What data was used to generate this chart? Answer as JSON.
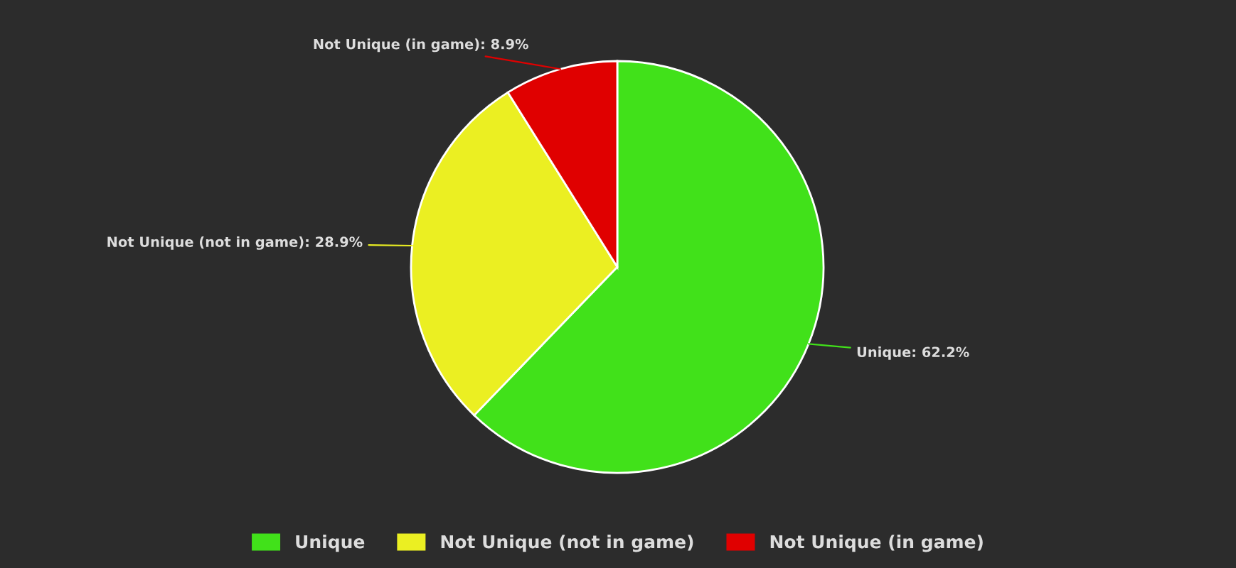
{
  "chart_data": {
    "type": "pie",
    "categories": [
      "Unique",
      "Not Unique (not in game)",
      "Not Unique (in game)"
    ],
    "values": [
      62.2,
      28.9,
      8.9
    ],
    "colors": [
      "#41e11a",
      "#ebef22",
      "#e00000"
    ],
    "value_labels": [
      "Unique: 62.2%",
      "Not Unique (not in game): 28.9%",
      "Not Unique (in game): 8.9%"
    ],
    "legend": "bottom"
  }
}
